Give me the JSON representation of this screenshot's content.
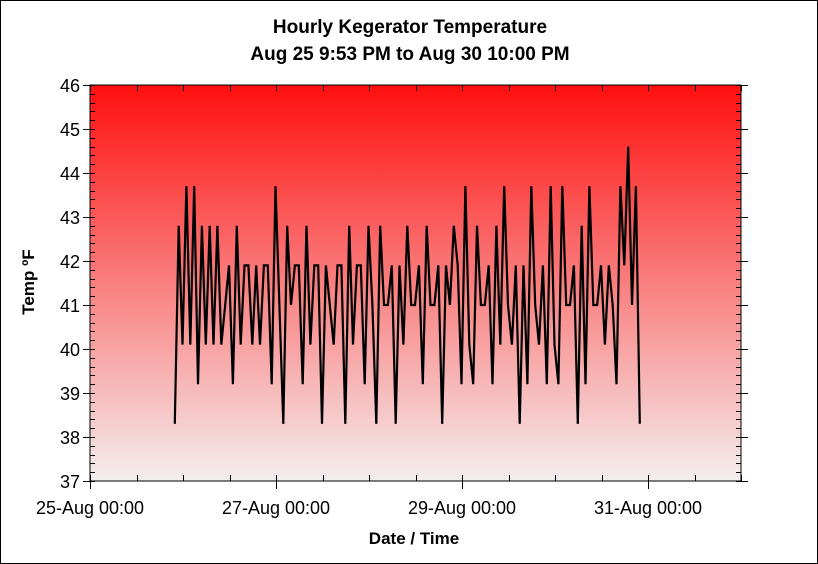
{
  "chart_data": {
    "type": "line",
    "title": "Hourly Kegerator Temperature",
    "subtitle": "Aug 25 9:53 PM to Aug 30 10:00 PM",
    "xlabel": "Date / Time",
    "ylabel": "Temp ºF",
    "ylim": [
      37,
      46
    ],
    "yticks": [
      "37",
      "38",
      "39",
      "40",
      "41",
      "42",
      "43",
      "44",
      "45",
      "46"
    ],
    "xlim_hours": [
      0,
      168
    ],
    "xtick_labels": [
      {
        "label": "25-Aug 00:00",
        "hour": 0
      },
      {
        "label": "27-Aug 00:00",
        "hour": 48
      },
      {
        "label": "29-Aug 00:00",
        "hour": 96
      },
      {
        "label": "31-Aug 00:00",
        "hour": 144
      }
    ],
    "x_start_hour": 21.88,
    "x_step_hours": 1,
    "colors": {
      "gradient_top": "#ff0f0f",
      "gradient_bottom": "#f4eeee",
      "line": "#000000"
    },
    "values": [
      38.3,
      42.8,
      40.1,
      43.7,
      40.1,
      43.7,
      39.2,
      42.8,
      40.1,
      42.8,
      40.1,
      42.8,
      40.1,
      41.0,
      41.9,
      39.2,
      42.8,
      40.1,
      41.9,
      41.9,
      40.1,
      41.9,
      40.1,
      41.9,
      41.9,
      39.2,
      43.7,
      41.0,
      38.3,
      42.8,
      41.0,
      41.9,
      41.9,
      39.2,
      42.8,
      40.1,
      41.9,
      41.9,
      38.3,
      41.9,
      41.0,
      40.1,
      41.9,
      41.9,
      38.3,
      42.8,
      40.1,
      41.9,
      41.9,
      39.2,
      42.8,
      41.0,
      38.3,
      42.8,
      41.0,
      41.0,
      41.9,
      38.3,
      41.9,
      40.1,
      42.8,
      41.0,
      41.0,
      41.9,
      39.2,
      42.8,
      41.0,
      41.0,
      41.9,
      38.3,
      41.9,
      41.0,
      42.8,
      41.9,
      39.2,
      43.7,
      40.1,
      39.2,
      42.8,
      41.0,
      41.0,
      41.9,
      39.2,
      42.8,
      40.1,
      43.7,
      41.0,
      40.1,
      41.9,
      38.3,
      41.9,
      39.2,
      43.7,
      41.0,
      40.1,
      41.9,
      39.2,
      43.7,
      40.1,
      39.2,
      43.7,
      41.0,
      41.0,
      41.9,
      38.3,
      42.8,
      39.2,
      43.7,
      41.0,
      41.0,
      41.9,
      40.1,
      41.9,
      41.0,
      39.2,
      43.7,
      41.9,
      44.6,
      41.0,
      43.7,
      38.3
    ]
  }
}
